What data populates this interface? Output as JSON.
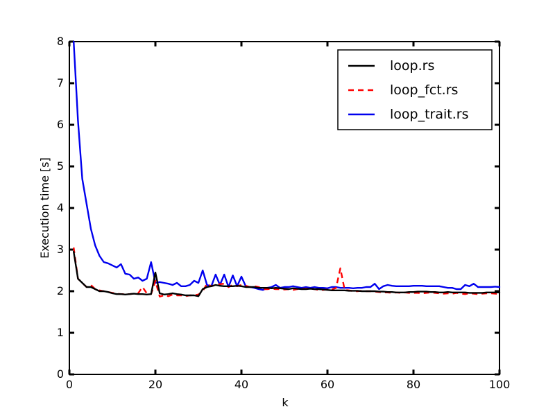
{
  "chart_data": {
    "type": "line",
    "title": "",
    "xlabel": "k",
    "ylabel": "Execution time [s]",
    "xlim": [
      0,
      100
    ],
    "ylim": [
      0,
      8
    ],
    "xticks": [
      "0",
      "20",
      "40",
      "60",
      "80",
      "100"
    ],
    "yticks": [
      "0",
      "1",
      "2",
      "3",
      "4",
      "5",
      "6",
      "7",
      "8"
    ],
    "grid": false,
    "legend_position": "top-right",
    "series": [
      {
        "name": "loop.rs",
        "color": "#000000",
        "dash": "solid",
        "x": [
          1,
          2,
          3,
          4,
          5,
          6,
          7,
          8,
          9,
          10,
          11,
          12,
          13,
          14,
          15,
          16,
          17,
          18,
          19,
          20,
          21,
          22,
          23,
          24,
          25,
          26,
          27,
          28,
          29,
          30,
          31,
          32,
          33,
          34,
          35,
          36,
          37,
          38,
          39,
          40,
          41,
          42,
          43,
          44,
          45,
          46,
          47,
          48,
          49,
          50,
          51,
          52,
          53,
          54,
          55,
          56,
          57,
          58,
          59,
          60,
          61,
          62,
          63,
          64,
          65,
          66,
          67,
          68,
          69,
          70,
          71,
          72,
          73,
          74,
          75,
          76,
          77,
          78,
          79,
          80,
          81,
          82,
          83,
          84,
          85,
          86,
          87,
          88,
          89,
          90,
          91,
          92,
          93,
          94,
          95,
          96,
          97,
          98,
          99,
          100
        ],
        "y": [
          2.95,
          2.3,
          2.2,
          2.1,
          2.1,
          2.05,
          2.0,
          2.0,
          1.98,
          1.95,
          1.93,
          1.93,
          1.92,
          1.93,
          1.94,
          1.93,
          1.93,
          1.92,
          1.93,
          2.45,
          1.95,
          1.92,
          1.93,
          1.95,
          1.93,
          1.92,
          1.9,
          1.9,
          1.9,
          1.88,
          2.05,
          2.1,
          2.12,
          2.15,
          2.13,
          2.12,
          2.12,
          2.12,
          2.13,
          2.12,
          2.1,
          2.1,
          2.1,
          2.08,
          2.08,
          2.08,
          2.07,
          2.08,
          2.07,
          2.06,
          2.05,
          2.07,
          2.06,
          2.05,
          2.05,
          2.06,
          2.05,
          2.05,
          2.04,
          2.03,
          2.02,
          2.02,
          2.02,
          2.02,
          2.01,
          2.01,
          2.01,
          2.0,
          2.0,
          2.0,
          2.0,
          1.99,
          1.99,
          1.98,
          1.98,
          1.97,
          1.97,
          1.97,
          1.98,
          1.98,
          1.99,
          1.99,
          1.99,
          1.98,
          1.98,
          1.97,
          1.97,
          1.98,
          1.97,
          1.97,
          1.97,
          1.97,
          1.96,
          1.96,
          1.96,
          1.96,
          1.97,
          1.97,
          1.97,
          1.97
        ]
      },
      {
        "name": "loop_fct.rs",
        "color": "#ff0000",
        "dash": "dashed",
        "x": [
          1,
          2,
          3,
          4,
          5,
          6,
          7,
          8,
          9,
          10,
          11,
          12,
          13,
          14,
          15,
          16,
          17,
          18,
          19,
          20,
          21,
          22,
          23,
          24,
          25,
          26,
          27,
          28,
          29,
          30,
          31,
          32,
          33,
          34,
          35,
          36,
          37,
          38,
          39,
          40,
          41,
          42,
          43,
          44,
          45,
          46,
          47,
          48,
          49,
          50,
          51,
          52,
          53,
          54,
          55,
          56,
          57,
          58,
          59,
          60,
          61,
          62,
          63,
          64,
          65,
          66,
          67,
          68,
          69,
          70,
          71,
          72,
          73,
          74,
          75,
          76,
          77,
          78,
          79,
          80,
          81,
          82,
          83,
          84,
          85,
          86,
          87,
          88,
          89,
          90,
          91,
          92,
          93,
          94,
          95,
          96,
          97,
          98,
          99,
          100
        ],
        "y": [
          3.05,
          2.3,
          2.2,
          2.1,
          2.15,
          2.05,
          2.02,
          2.0,
          1.98,
          1.96,
          1.94,
          1.93,
          1.93,
          1.93,
          1.94,
          1.95,
          2.1,
          1.95,
          1.93,
          2.25,
          1.87,
          1.9,
          1.88,
          1.92,
          1.9,
          1.9,
          1.88,
          1.9,
          1.9,
          1.92,
          2.0,
          2.18,
          2.12,
          2.15,
          2.17,
          2.18,
          2.1,
          2.15,
          2.12,
          2.15,
          2.13,
          2.1,
          2.12,
          2.1,
          2.05,
          2.05,
          2.06,
          2.05,
          2.05,
          2.04,
          2.05,
          2.03,
          2.05,
          2.06,
          2.06,
          2.06,
          2.05,
          2.03,
          2.03,
          2.04,
          2.04,
          2.08,
          2.55,
          2.03,
          2.02,
          2.0,
          2.0,
          2.01,
          2.0,
          2.0,
          1.99,
          1.98,
          1.97,
          1.97,
          1.96,
          1.97,
          1.96,
          1.97,
          1.96,
          1.96,
          1.96,
          1.95,
          1.96,
          1.97,
          1.96,
          1.95,
          1.94,
          1.95,
          1.94,
          1.96,
          1.94,
          1.93,
          1.95,
          1.94,
          1.93,
          1.94,
          1.95,
          1.95,
          1.94,
          1.93
        ]
      },
      {
        "name": "loop_trait.rs",
        "color": "#0000ee",
        "dash": "solid",
        "x": [
          1,
          2,
          3,
          4,
          5,
          6,
          7,
          8,
          9,
          10,
          11,
          12,
          13,
          14,
          15,
          16,
          17,
          18,
          19,
          20,
          21,
          22,
          23,
          24,
          25,
          26,
          27,
          28,
          29,
          30,
          31,
          32,
          33,
          34,
          35,
          36,
          37,
          38,
          39,
          40,
          41,
          42,
          43,
          44,
          45,
          46,
          47,
          48,
          49,
          50,
          51,
          52,
          53,
          54,
          55,
          56,
          57,
          58,
          59,
          60,
          61,
          62,
          63,
          64,
          65,
          66,
          67,
          68,
          69,
          70,
          71,
          72,
          73,
          74,
          75,
          76,
          77,
          78,
          79,
          80,
          81,
          82,
          83,
          84,
          85,
          86,
          87,
          88,
          89,
          90,
          91,
          92,
          93,
          94,
          95,
          96,
          97,
          98,
          99,
          100
        ],
        "y": [
          8.0,
          6.1,
          4.7,
          4.1,
          3.5,
          3.1,
          2.85,
          2.7,
          2.67,
          2.62,
          2.57,
          2.65,
          2.42,
          2.4,
          2.3,
          2.33,
          2.25,
          2.3,
          2.7,
          2.2,
          2.22,
          2.2,
          2.18,
          2.15,
          2.2,
          2.12,
          2.12,
          2.15,
          2.25,
          2.2,
          2.5,
          2.15,
          2.12,
          2.4,
          2.15,
          2.4,
          2.1,
          2.38,
          2.12,
          2.35,
          2.12,
          2.1,
          2.08,
          2.05,
          2.03,
          2.08,
          2.1,
          2.15,
          2.08,
          2.1,
          2.1,
          2.12,
          2.1,
          2.08,
          2.1,
          2.08,
          2.1,
          2.08,
          2.08,
          2.07,
          2.1,
          2.1,
          2.08,
          2.08,
          2.08,
          2.07,
          2.08,
          2.08,
          2.1,
          2.1,
          2.18,
          2.05,
          2.12,
          2.15,
          2.13,
          2.12,
          2.12,
          2.12,
          2.12,
          2.13,
          2.13,
          2.13,
          2.12,
          2.12,
          2.12,
          2.12,
          2.1,
          2.08,
          2.08,
          2.05,
          2.05,
          2.15,
          2.12,
          2.18,
          2.1,
          2.1,
          2.1,
          2.1,
          2.11,
          2.1
        ]
      }
    ]
  }
}
